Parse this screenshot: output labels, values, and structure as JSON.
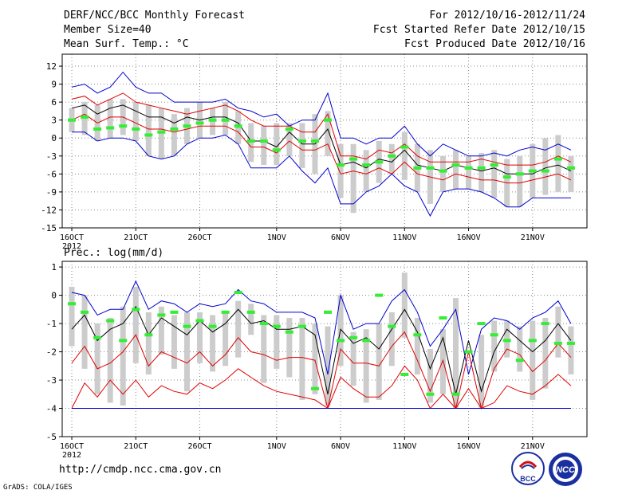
{
  "header": {
    "title": "DERF/NCC/BCC Monthly Forecast",
    "member": "Member Size=40",
    "variable": "Mean Surf. Temp.: °C",
    "for": "For 2012/10/16-2012/11/24",
    "refer": "Fcst Started Refer Date 2012/10/15",
    "produced": "Fcst Produced Date 2012/10/16"
  },
  "footer": {
    "url": "http://cmdp.ncc.cma.gov.cn",
    "grads": "GrADS: COLA/IGES",
    "logo1": "BCC",
    "logo2": "NCC"
  },
  "colors": {
    "black": "#000000",
    "red": "#e00000",
    "blue": "#0000d0",
    "green": "#33ee33",
    "grey": "#cccccc"
  },
  "chart_data": [
    {
      "type": "line",
      "title": "Mean Surf. Temp.: °C",
      "ylim": [
        -15,
        14
      ],
      "yticks": [
        12,
        9,
        6,
        3,
        0,
        -3,
        -6,
        -9,
        -12,
        -15
      ],
      "ytick_labels": [
        "12",
        "9",
        "6",
        "3",
        "0",
        "-3",
        "-6",
        "-9",
        "-12",
        "-15"
      ],
      "xticks": [
        {
          "day": 1,
          "label": "16OCT"
        },
        {
          "day": 6,
          "label": "21OCT"
        },
        {
          "day": 11,
          "label": "26OCT"
        },
        {
          "day": 17,
          "label": "1NOV"
        },
        {
          "day": 22,
          "label": "6NOV"
        },
        {
          "day": 27,
          "label": "11NOV"
        },
        {
          "day": 32,
          "label": "16NOV"
        },
        {
          "day": 37,
          "label": "21NOV"
        }
      ],
      "year_label": "2012",
      "x": [
        1,
        2,
        3,
        4,
        5,
        6,
        7,
        8,
        9,
        10,
        11,
        12,
        13,
        14,
        15,
        16,
        17,
        18,
        19,
        20,
        21,
        22,
        23,
        24,
        25,
        26,
        27,
        28,
        29,
        30,
        31,
        32,
        33,
        34,
        35,
        36,
        37,
        38,
        39,
        40
      ],
      "series": [
        {
          "name": "blue-upper",
          "color": "blue",
          "values": [
            8.5,
            9,
            7.5,
            8.5,
            11,
            8.5,
            7.5,
            7.5,
            6,
            6,
            6,
            6,
            6.5,
            5,
            4.5,
            3.5,
            4,
            2,
            3,
            3,
            7.5,
            0,
            0,
            -1,
            0,
            0,
            2,
            -1,
            -3,
            -1,
            -2,
            -3,
            -3,
            -2.5,
            -3,
            -2,
            -1.5,
            -2,
            -1,
            -2
          ]
        },
        {
          "name": "red-upper",
          "color": "red",
          "values": [
            6.5,
            7,
            5.5,
            6.5,
            7.5,
            6,
            5.5,
            5,
            4.5,
            4,
            4.5,
            5,
            5.5,
            4.5,
            3,
            2,
            2,
            2,
            1,
            1,
            4,
            -3,
            -3,
            -3.5,
            -2,
            -2.5,
            -1,
            -3,
            -4,
            -4,
            -4,
            -4,
            -3.5,
            -4,
            -4.5,
            -4.5,
            -4.5,
            -4,
            -3,
            -4
          ]
        },
        {
          "name": "black-mean",
          "color": "black",
          "values": [
            5,
            5.5,
            4,
            5,
            5.5,
            4.5,
            3.5,
            3.5,
            2.5,
            3.5,
            3,
            3.5,
            3.5,
            2.5,
            -0.5,
            -0.5,
            -1.5,
            1,
            -1,
            -1,
            1.5,
            -4.5,
            -4,
            -5,
            -3.5,
            -4,
            -2,
            -4.5,
            -5,
            -5.5,
            -4.5,
            -5,
            -5.5,
            -5,
            -6,
            -6,
            -6,
            -5,
            -4.5,
            -5.5
          ]
        },
        {
          "name": "red-lower",
          "color": "red",
          "values": [
            3,
            4,
            2.5,
            3.5,
            3.5,
            2.5,
            1.5,
            1.5,
            1,
            1.5,
            2,
            2,
            2,
            1,
            -1.5,
            -1.5,
            -2.5,
            -0.5,
            -2,
            -2,
            -1,
            -6,
            -5.5,
            -6,
            -5,
            -6,
            -4,
            -6,
            -6.5,
            -7,
            -6,
            -6.5,
            -7,
            -7,
            -7.5,
            -7.5,
            -7,
            -6.5,
            -6,
            -7
          ]
        },
        {
          "name": "blue-lower",
          "color": "blue",
          "values": [
            1,
            1,
            -0.5,
            0,
            0,
            -0.5,
            -3,
            -3.5,
            -3,
            -1,
            0,
            0,
            0.5,
            -1,
            -5,
            -5,
            -5,
            -3,
            -5.5,
            -7.5,
            -5,
            -11,
            -11,
            -9,
            -8,
            -6,
            -8,
            -9,
            -13,
            -9,
            -8.5,
            -8.5,
            -9,
            -10,
            -11.5,
            -11.5,
            -10,
            -10,
            -10,
            -10
          ]
        }
      ],
      "bars": {
        "low": [
          1,
          0.5,
          -0.5,
          0,
          0.5,
          -0.5,
          -3,
          -3.5,
          -3,
          -1,
          0,
          0.5,
          0.5,
          -1,
          -4,
          -4.5,
          -4.5,
          -3,
          -5,
          -6,
          -3,
          -10,
          -12.5,
          -9,
          -7.5,
          -6,
          -7,
          -9,
          -11,
          -9,
          -8.5,
          -8.5,
          -9,
          -10,
          -11.5,
          -11.5,
          -10,
          -9.5,
          -9,
          -9
        ],
        "high": [
          5,
          6,
          5.5,
          6.5,
          6.5,
          6,
          5.5,
          5,
          4,
          5,
          6,
          5,
          6,
          4.5,
          2.5,
          2,
          2.5,
          2.5,
          2.5,
          4,
          4.5,
          -1,
          -1,
          -2,
          -0.5,
          -1,
          1,
          -1,
          -2,
          -3,
          -2,
          -3,
          -2.5,
          -2,
          -3.5,
          -3,
          -1,
          0,
          0.5,
          -3
        ]
      },
      "green_marks": [
        3,
        3.5,
        1.5,
        1.7,
        2,
        1.5,
        0.5,
        1,
        1.5,
        2,
        2.5,
        3,
        3,
        2,
        -0.5,
        -0.5,
        -2,
        1.5,
        -0.5,
        -0.5,
        3,
        -4.5,
        -3.5,
        -4.5,
        -4,
        -3,
        -1.5,
        -5,
        -5,
        -5.5,
        -4.5,
        -5,
        -5,
        -4.5,
        -6.5,
        -6,
        -5.5,
        -5.5,
        -3.5,
        -5
      ]
    },
    {
      "type": "line",
      "title": "Prec.: log(mm/d)",
      "ylim": [
        -5,
        1.2
      ],
      "yticks": [
        1,
        0,
        -1,
        -2,
        -3,
        -4,
        -5
      ],
      "ytick_labels": [
        "1",
        "0",
        "-1",
        "-2",
        "-3",
        "-4",
        "-5"
      ],
      "xticks": [
        {
          "day": 1,
          "label": "16OCT"
        },
        {
          "day": 6,
          "label": "21OCT"
        },
        {
          "day": 11,
          "label": "26OCT"
        },
        {
          "day": 17,
          "label": "1NOV"
        },
        {
          "day": 22,
          "label": "6NOV"
        },
        {
          "day": 27,
          "label": "11NOV"
        },
        {
          "day": 32,
          "label": "16NOV"
        },
        {
          "day": 37,
          "label": "21NOV"
        }
      ],
      "year_label": "2012",
      "x": [
        1,
        2,
        3,
        4,
        5,
        6,
        7,
        8,
        9,
        10,
        11,
        12,
        13,
        14,
        15,
        16,
        17,
        18,
        19,
        20,
        21,
        22,
        23,
        24,
        25,
        26,
        27,
        28,
        29,
        30,
        31,
        32,
        33,
        34,
        35,
        36,
        37,
        38,
        39,
        40
      ],
      "series": [
        {
          "name": "blue-upper",
          "color": "blue",
          "values": [
            0.1,
            0,
            -0.7,
            -0.5,
            -0.5,
            0.5,
            -0.5,
            -0.2,
            -0.3,
            -0.6,
            -0.3,
            -0.4,
            -0.3,
            0.2,
            -0.2,
            -0.3,
            -0.6,
            -0.6,
            -0.6,
            -0.8,
            -2.8,
            0,
            -1.2,
            -1,
            -1,
            -0.2,
            0.2,
            -0.6,
            -1.8,
            -1.2,
            -0.5,
            -2.8,
            -1.2,
            -0.8,
            -0.9,
            -1.2,
            -0.8,
            -0.6,
            -0.2,
            -1
          ]
        },
        {
          "name": "black-mean",
          "color": "black",
          "values": [
            -1.2,
            -0.7,
            -1.6,
            -1.2,
            -1,
            -0.4,
            -1.4,
            -0.8,
            -1.1,
            -1.4,
            -0.9,
            -1.3,
            -1,
            -0.5,
            -1,
            -0.9,
            -1.2,
            -1.2,
            -1.1,
            -1.4,
            -3.5,
            -1.2,
            -1.7,
            -1.5,
            -1.9,
            -1.2,
            -0.5,
            -1.3,
            -2.6,
            -1.5,
            -3.5,
            -1.6,
            -3.4,
            -2,
            -1.2,
            -1.6,
            -2,
            -1.6,
            -1,
            -1.6
          ]
        },
        {
          "name": "red-upper",
          "color": "red",
          "values": [
            -2.4,
            -1.8,
            -2.6,
            -2.4,
            -2,
            -1.4,
            -2.5,
            -2,
            -2.2,
            -2.4,
            -2,
            -2.5,
            -2.1,
            -1.5,
            -2,
            -2.1,
            -2.3,
            -2.2,
            -2.2,
            -2.3,
            -4,
            -1.9,
            -2.4,
            -2.4,
            -2.5,
            -1.8,
            -1.3,
            -2.3,
            -3.4,
            -2.3,
            -4,
            -2,
            -4,
            -2.6,
            -1.9,
            -2.1,
            -2.7,
            -2.3,
            -1.7,
            -2.2
          ]
        },
        {
          "name": "red-lower",
          "color": "red",
          "values": [
            -4,
            -3.1,
            -3.6,
            -3,
            -3.5,
            -3,
            -3.6,
            -3.2,
            -3.4,
            -3.5,
            -3.1,
            -3.3,
            -3,
            -2.6,
            -2.9,
            -3.2,
            -3.4,
            -3.5,
            -3.6,
            -3.7,
            -4,
            -2.9,
            -3.3,
            -3.6,
            -3.6,
            -3.2,
            -2.5,
            -3,
            -4,
            -3.5,
            -4,
            -3.3,
            -4,
            -3.8,
            -3.2,
            -3.4,
            -3.5,
            -3.2,
            -2.8,
            -3.2
          ]
        },
        {
          "name": "blue-lower",
          "color": "blue",
          "values": [
            -4,
            -4,
            -4,
            -4,
            -4,
            -4,
            -4,
            -4,
            -4,
            -4,
            -4,
            -4,
            -4,
            -4,
            -4,
            -4,
            -4,
            -4,
            -4,
            -4,
            -4,
            -4,
            -4,
            -4,
            -4,
            -4,
            -4,
            -4,
            -4,
            -4,
            -4,
            -4,
            -4,
            -4,
            -4,
            -4,
            -4,
            -4,
            -4,
            -4
          ]
        }
      ],
      "bars": {
        "low": [
          -1.8,
          -2.6,
          -3.5,
          -3.8,
          -3.9,
          -2.4,
          -2.8,
          -2.1,
          -2.6,
          -3.4,
          -2.4,
          -2.7,
          -2.5,
          -2.2,
          -1.4,
          -3.1,
          -2.6,
          -2.9,
          -3.7,
          -3.5,
          -3.9,
          -2.5,
          -3.2,
          -3.8,
          -3.7,
          -2.5,
          -1.5,
          -2.8,
          -3.8,
          -3.5,
          -4,
          -3,
          -4,
          -2.7,
          -2.2,
          -2.7,
          -3.7,
          -3.3,
          -2.2,
          -2.8
        ],
        "high": [
          0.3,
          0,
          -1,
          -0.8,
          -0.4,
          0.3,
          -0.6,
          -0.4,
          -0.7,
          -0.6,
          -0.6,
          -0.7,
          -0.6,
          -0.2,
          -0.3,
          -0.7,
          -0.7,
          -0.8,
          -0.8,
          -1,
          -1.1,
          0,
          -1.3,
          -1.2,
          -1,
          -0.6,
          0.8,
          -0.8,
          -1.9,
          -1.2,
          -0.1,
          -3,
          -1.4,
          -0.9,
          -0.9,
          -1.1,
          -0.9,
          -0.8,
          -0.4,
          -1.1
        ]
      },
      "green_marks": [
        -0.3,
        -0.6,
        -1.5,
        -0.9,
        -1.6,
        -0.5,
        -1.4,
        -0.7,
        -0.6,
        -1.1,
        -0.9,
        -1.1,
        -0.6,
        0.1,
        -0.6,
        -1,
        -1.1,
        -1.3,
        -1.1,
        -3.3,
        -0.6,
        -1.6,
        -1.5,
        -1.6,
        0,
        -1.1,
        -2.8,
        -1.4,
        -3.5,
        -0.8,
        -3.5,
        -2,
        -1,
        -1.4,
        -1.6,
        -2.3,
        -1.6,
        -1,
        -1.7,
        -1.7
      ],
      "floor_line": -4
    }
  ]
}
